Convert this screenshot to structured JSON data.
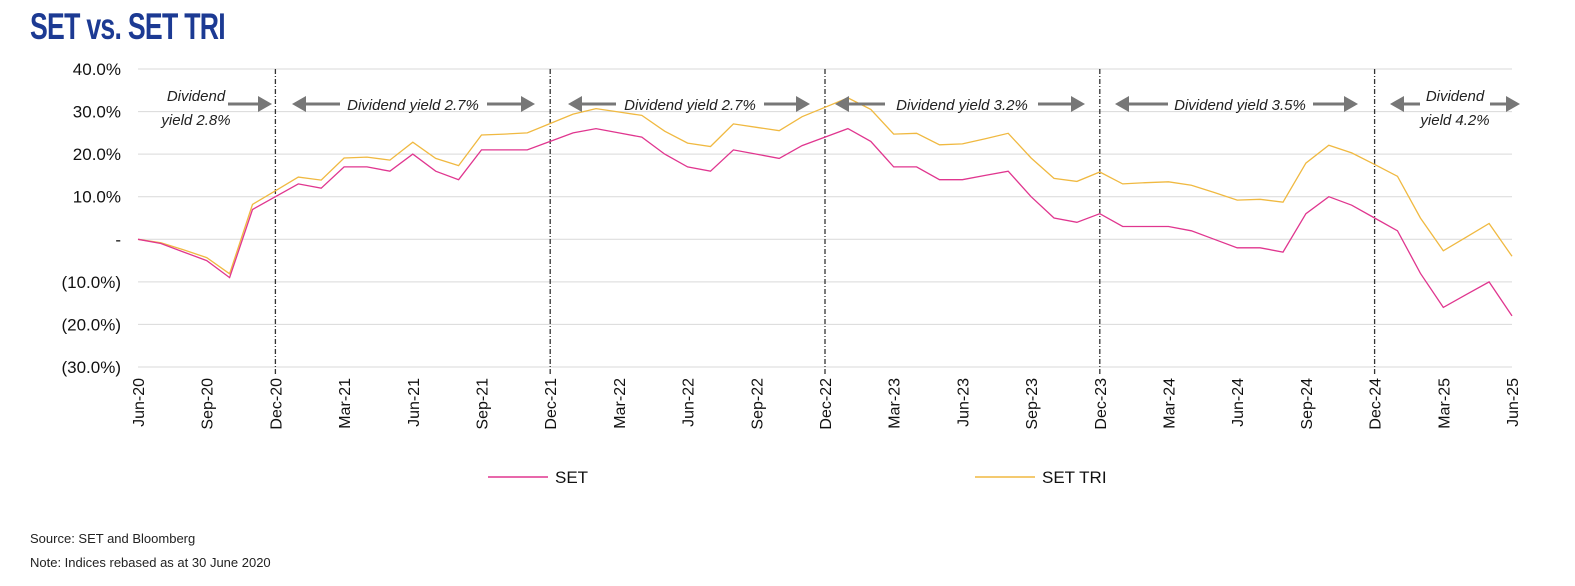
{
  "title": "SET vs. SET TRI",
  "chart_data": {
    "type": "line",
    "title": "SET vs. SET TRI",
    "xlabel": "",
    "ylabel": "",
    "ylim": [
      -30,
      40
    ],
    "y_ticks": [
      40,
      30,
      20,
      10,
      0,
      -10,
      -20,
      -30
    ],
    "y_tick_labels": [
      "40.0%",
      "30.0%",
      "20.0%",
      "10.0%",
      "-",
      "(10.0%)",
      "(20.0%)",
      "(30.0%)"
    ],
    "x_tick_labels": [
      "Jun-20",
      "Sep-20",
      "Dec-20",
      "Mar-21",
      "Jun-21",
      "Sep-21",
      "Dec-21",
      "Mar-22",
      "Jun-22",
      "Sep-22",
      "Dec-22",
      "Mar-23",
      "Jun-23",
      "Sep-23",
      "Dec-23",
      "Mar-24",
      "Jun-24",
      "Sep-24",
      "Dec-24",
      "Mar-25",
      "Jun-25"
    ],
    "x_unit": "months since Jun-20 (monthly, approximate)",
    "grid": true,
    "legend_position": "bottom",
    "series": [
      {
        "name": "SET",
        "color": "#e0368f",
        "values": [
          0,
          -1,
          -3,
          -5,
          -9,
          7,
          10,
          13,
          12,
          17,
          17,
          16,
          20,
          16,
          14,
          21,
          21,
          21,
          23,
          25,
          26,
          25,
          24,
          20,
          17,
          16,
          21,
          20,
          19,
          22,
          24,
          26,
          23,
          17,
          17,
          14,
          14,
          15,
          16,
          10,
          5,
          4,
          6,
          3,
          3,
          3,
          2,
          0,
          -2,
          -2,
          -3,
          6,
          10,
          8,
          5,
          2,
          -8,
          -16,
          -13,
          -10,
          -18
        ]
      },
      {
        "name": "SET TRI",
        "color": "#f0b941",
        "values": [
          0,
          -0.8,
          -2.5,
          -4.3,
          -8.1,
          8.2,
          11.4,
          14.6,
          13.9,
          19.1,
          19.3,
          18.6,
          22.8,
          19,
          17.3,
          24.5,
          24.7,
          25,
          27.2,
          29.4,
          30.7,
          29.9,
          29.1,
          25.4,
          22.6,
          21.8,
          27.1,
          26.3,
          25.5,
          28.8,
          31,
          33.2,
          30.5,
          24.7,
          24.9,
          22.2,
          22.4,
          23.6,
          24.9,
          19.1,
          14.3,
          13.6,
          15.8,
          13,
          13.3,
          13.5,
          12.7,
          11,
          9.2,
          9.4,
          8.7,
          17.9,
          22.1,
          20.3,
          17.6,
          14.8,
          5,
          -2.7,
          0.5,
          3.7,
          -4
        ]
      }
    ],
    "period_dividers": [
      "Dec-20",
      "Dec-21",
      "Dec-22",
      "Dec-23",
      "Dec-24"
    ],
    "annotations": [
      {
        "lines": [
          "Dividend",
          "yield 2.8%"
        ]
      },
      {
        "lines": [
          "Dividend yield 2.7%"
        ]
      },
      {
        "lines": [
          "Dividend yield 2.7%"
        ]
      },
      {
        "lines": [
          "Dividend yield 3.2%"
        ]
      },
      {
        "lines": [
          "Dividend yield 3.5%"
        ]
      },
      {
        "lines": [
          "Dividend",
          "yield 4.2%"
        ]
      }
    ]
  },
  "notes": {
    "source": "Source: SET and Bloomberg",
    "note": "Note: Indices rebased as at 30 June 2020"
  }
}
